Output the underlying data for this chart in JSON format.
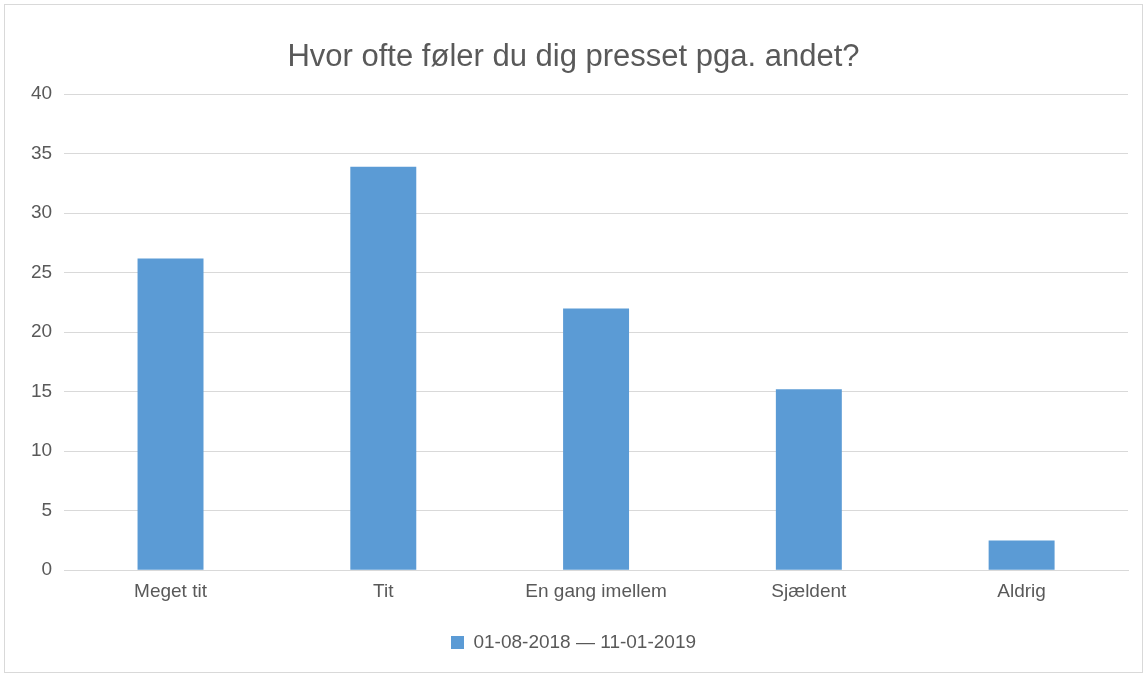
{
  "chart_data": {
    "type": "bar",
    "title": "Hvor ofte føler du dig presset pga. andet?",
    "categories": [
      "Meget tit",
      "Tit",
      "En gang imellem",
      "Sjældent",
      "Aldrig"
    ],
    "series": [
      {
        "name": "01-08-2018 — 11-01-2019",
        "color": "#5b9bd5",
        "values": [
          26.2,
          33.9,
          22,
          15.2,
          2.5
        ]
      }
    ],
    "ylim": [
      0,
      40
    ],
    "yticks": [
      0,
      5,
      10,
      15,
      20,
      25,
      30,
      35,
      40
    ],
    "grid": "y",
    "legend": "bottom"
  }
}
